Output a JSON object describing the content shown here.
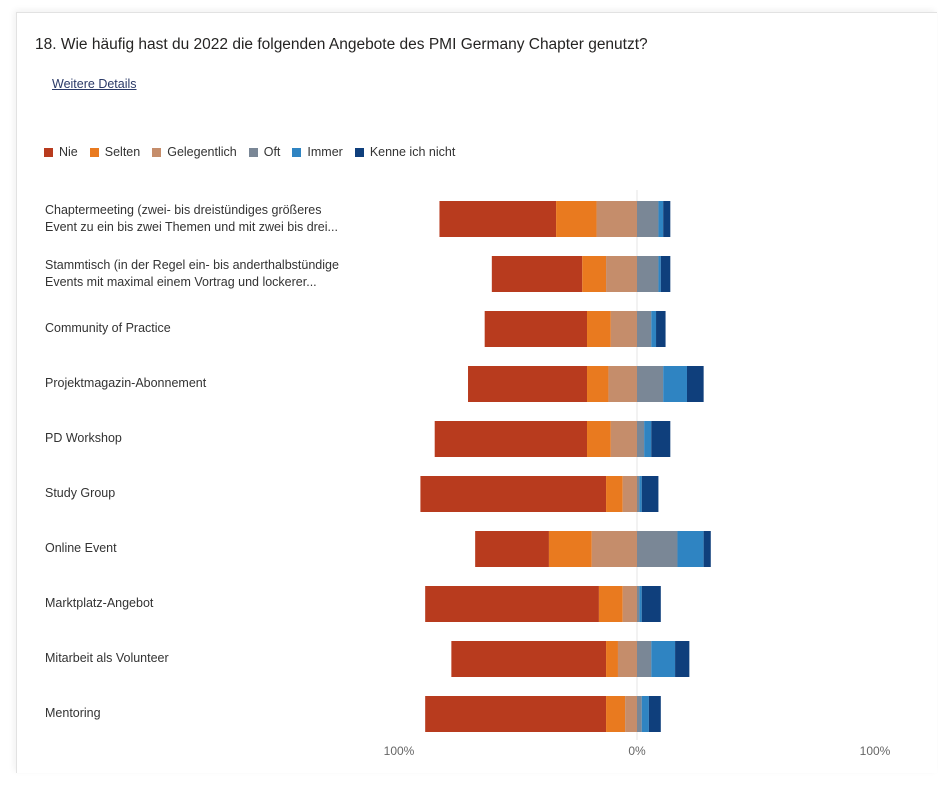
{
  "question": "18. Wie häufig hast du 2022 die folgenden Angebote des PMI Germany Chapter genutzt?",
  "details_link": "Weitere Details",
  "chart_data": {
    "type": "bar",
    "stacked": true,
    "diverging": true,
    "orientation": "horizontal",
    "xlim": [
      -100,
      100
    ],
    "xlabel": "",
    "ylabel": "",
    "tick_labels": [
      "100%",
      "0%",
      "100%"
    ],
    "legend_position": "top-left",
    "grid": false,
    "categories": [
      {
        "line1": "Chaptermeeting (zwei- bis dreistündiges größeres",
        "line2": "Event zu ein bis zwei Themen und mit zwei bis drei..."
      },
      {
        "line1": "Stammtisch (in der Regel ein- bis anderthalbstündige",
        "line2": "Events mit maximal einem Vortrag und lockerer..."
      },
      {
        "line1": "Community of Practice",
        "line2": ""
      },
      {
        "line1": "Projektmagazin-Abonnement",
        "line2": ""
      },
      {
        "line1": "PD Workshop",
        "line2": ""
      },
      {
        "line1": "Study Group",
        "line2": ""
      },
      {
        "line1": "Online Event",
        "line2": ""
      },
      {
        "line1": "Marktplatz-Angebot",
        "line2": ""
      },
      {
        "line1": "Mitarbeit als Volunteer",
        "line2": ""
      },
      {
        "line1": "Mentoring",
        "line2": ""
      }
    ],
    "series": [
      {
        "name": "Nie",
        "color": "#b83b1e",
        "side": "negative",
        "values": [
          49,
          38,
          43,
          50,
          64,
          78,
          31,
          73,
          65,
          76
        ]
      },
      {
        "name": "Selten",
        "color": "#e97a1f",
        "side": "negative",
        "values": [
          17,
          10,
          10,
          9,
          10,
          7,
          18,
          10,
          5,
          8
        ]
      },
      {
        "name": "Gelegentlich",
        "color": "#c58d6b",
        "side": "negative",
        "values": [
          17,
          13,
          11,
          12,
          11,
          6,
          19,
          6,
          8,
          5
        ]
      },
      {
        "name": "Oft",
        "color": "#7a8796",
        "side": "positive",
        "values": [
          9,
          9,
          6,
          11,
          3,
          1,
          17,
          1,
          6,
          2
        ]
      },
      {
        "name": "Immer",
        "color": "#2f84c2",
        "side": "positive",
        "values": [
          2,
          1,
          2,
          10,
          3,
          1,
          11,
          1,
          10,
          3
        ]
      },
      {
        "name": "Kenne ich nicht",
        "color": "#0f3f7c",
        "side": "positive",
        "values": [
          3,
          4,
          4,
          7,
          8,
          7,
          3,
          8,
          6,
          5
        ]
      }
    ]
  }
}
